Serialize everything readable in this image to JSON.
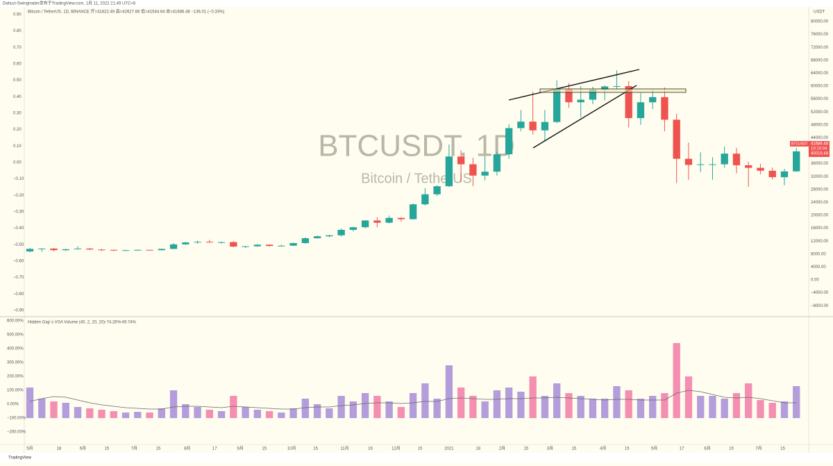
{
  "header": {
    "publisher": "Dahuzi-Swingtrader发布于TradingView.com,  1月 11, 2022 21:49 UTC+8",
    "legend": "Bitcoin / TetherUS, 1D, BINANCE  开=41822.49  高=42627.66  低=41544.64  收=41686.48  −136.01 (−0.33%)",
    "brand": "TradingView"
  },
  "chart_data": [
    {
      "type": "candlestick",
      "title": "BTCUSDT, 1D",
      "subtitle": "Bitcoin / TetherUS",
      "unit": "USDT",
      "x": [
        0,
        7,
        14,
        21,
        28,
        35,
        42,
        49,
        56,
        63,
        70,
        77,
        84,
        91,
        98,
        105,
        112,
        119,
        126,
        133,
        140,
        147,
        154,
        161,
        168,
        175,
        182,
        189,
        196,
        203,
        210,
        217,
        224,
        231,
        238,
        245,
        252,
        259,
        266,
        273,
        280,
        287,
        294,
        301,
        308,
        315,
        322,
        329,
        336,
        343,
        350,
        357,
        364,
        371,
        378,
        385,
        392,
        399,
        406,
        413,
        420,
        427,
        434,
        441,
        448
      ],
      "series": [
        {
          "name": "BTCUSDT",
          "axis": "y2",
          "up_color": "#26a69a",
          "down_color": "#ef5350",
          "open": [
            8800,
            9600,
            9700,
            9200,
            9500,
            9700,
            9400,
            9300,
            9100,
            9200,
            9300,
            9200,
            9600,
            11000,
            11600,
            11800,
            11600,
            11700,
            10300,
            10400,
            10900,
            10500,
            10600,
            11400,
            12900,
            13500,
            13800,
            15500,
            16300,
            18400,
            17700,
            19200,
            18800,
            23400,
            26500,
            29000,
            38200,
            35800,
            32300,
            33500,
            38900,
            47000,
            49000,
            46300,
            48900,
            59000,
            55000,
            55800,
            58900,
            59900,
            60000,
            50100,
            55000,
            56600,
            49600,
            37500,
            35600,
            35800,
            35800,
            39100,
            35500,
            34700,
            33800,
            31800,
            33600
          ],
          "high": [
            9900,
            9800,
            9900,
            9600,
            10400,
            9900,
            9600,
            9400,
            9300,
            9400,
            9300,
            9700,
            11400,
            11800,
            12100,
            12400,
            11800,
            12000,
            10500,
            11100,
            11000,
            10900,
            11500,
            13200,
            13800,
            14000,
            15900,
            16400,
            18500,
            19400,
            19900,
            19400,
            23700,
            28400,
            29300,
            41900,
            40100,
            37800,
            38500,
            39700,
            48200,
            52600,
            58300,
            52600,
            61800,
            61000,
            60000,
            59800,
            60200,
            64900,
            61500,
            57900,
            58900,
            59600,
            51500,
            42500,
            39500,
            38000,
            41300,
            40900,
            36600,
            35900,
            34800,
            34400,
            40900
          ],
          "low": [
            8600,
            8700,
            8800,
            8900,
            9400,
            9300,
            8900,
            8900,
            9000,
            9100,
            9100,
            9100,
            9500,
            10800,
            11200,
            11500,
            11200,
            10100,
            9900,
            10200,
            10300,
            10400,
            10500,
            11200,
            12800,
            13200,
            13400,
            15000,
            16000,
            16300,
            17500,
            18000,
            18700,
            23000,
            26000,
            28800,
            30300,
            29000,
            30800,
            32300,
            37500,
            46000,
            45000,
            43000,
            48500,
            53300,
            50300,
            54400,
            55600,
            59000,
            47200,
            48000,
            52900,
            46000,
            30000,
            31000,
            33400,
            31000,
            34700,
            33000,
            28800,
            32700,
            31100,
            29300,
            33500
          ],
          "close": [
            9600,
            9700,
            9200,
            9500,
            9700,
            9400,
            9300,
            9100,
            9200,
            9300,
            9200,
            9600,
            11000,
            11600,
            11800,
            11600,
            11700,
            10300,
            10400,
            10900,
            10500,
            10600,
            11400,
            12900,
            13500,
            13800,
            15500,
            16300,
            18400,
            17700,
            19200,
            18800,
            23400,
            26500,
            29000,
            38200,
            35800,
            32300,
            33500,
            38900,
            47000,
            49000,
            46300,
            48900,
            59000,
            55000,
            55800,
            58900,
            59900,
            60000,
            50100,
            55000,
            56600,
            49600,
            37500,
            35600,
            35800,
            35800,
            39100,
            35500,
            34700,
            33800,
            31800,
            33600,
            39800
          ]
        }
      ],
      "price_tags": [
        "41686.48",
        "10:10:04",
        "40016.48"
      ],
      "xlim": [
        -3.25,
        454.4
      ],
      "xticks": [
        {
          "value": 0,
          "label": "5月"
        },
        {
          "value": 17,
          "label": "18"
        },
        {
          "value": 31,
          "label": "6月"
        },
        {
          "value": 45,
          "label": "15"
        },
        {
          "value": 61,
          "label": "7月"
        },
        {
          "value": 75,
          "label": "15"
        },
        {
          "value": 92,
          "label": "8月"
        },
        {
          "value": 108,
          "label": "17"
        },
        {
          "value": 123,
          "label": "9月"
        },
        {
          "value": 137,
          "label": "15"
        },
        {
          "value": 153,
          "label": "10月"
        },
        {
          "value": 167,
          "label": "15"
        },
        {
          "value": 184,
          "label": "11月"
        },
        {
          "value": 199,
          "label": "16"
        },
        {
          "value": 214,
          "label": "12月"
        },
        {
          "value": 228,
          "label": "15"
        },
        {
          "value": 245,
          "label": "2021"
        },
        {
          "value": 262,
          "label": "18"
        },
        {
          "value": 276,
          "label": "2月"
        },
        {
          "value": 290,
          "label": "15"
        },
        {
          "value": 304,
          "label": "3月"
        },
        {
          "value": 318,
          "label": "15"
        },
        {
          "value": 335,
          "label": "4月"
        },
        {
          "value": 349,
          "label": "15"
        },
        {
          "value": 365,
          "label": "5月"
        },
        {
          "value": 381,
          "label": "17"
        },
        {
          "value": 396,
          "label": "6月"
        },
        {
          "value": 410,
          "label": "15"
        },
        {
          "value": 426,
          "label": "7月"
        },
        {
          "value": 440,
          "label": "15"
        }
      ],
      "ylim": [
        -0.934,
        0.9465
      ],
      "yticks": [
        {
          "value": 0.9,
          "label": "0.90"
        },
        {
          "value": 0.8,
          "label": "0.80"
        },
        {
          "value": 0.7,
          "label": "0.70"
        },
        {
          "value": 0.6,
          "label": "0.60"
        },
        {
          "value": 0.5,
          "label": "0.50"
        },
        {
          "value": 0.4,
          "label": "0.40"
        },
        {
          "value": 0.3,
          "label": "0.30"
        },
        {
          "value": 0.2,
          "label": "0.20"
        },
        {
          "value": 0.1,
          "label": "0.10"
        },
        {
          "value": 0,
          "label": "0.00"
        },
        {
          "value": -0.1,
          "label": "−0.10"
        },
        {
          "value": -0.2,
          "label": "−0.20"
        },
        {
          "value": -0.3,
          "label": "−0.30"
        },
        {
          "value": -0.4,
          "label": "−0.40"
        },
        {
          "value": -0.5,
          "label": "−0.50"
        },
        {
          "value": -0.6,
          "label": "−0.60"
        },
        {
          "value": -0.7,
          "label": "−0.70"
        },
        {
          "value": -0.8,
          "label": "−0.80"
        },
        {
          "value": -0.9,
          "label": "−0.90"
        }
      ],
      "y2lim": [
        -11180,
        84520
      ],
      "y2ticks": [
        {
          "value": 80000,
          "label": "80000.00"
        },
        {
          "value": 76000,
          "label": "76000.00"
        },
        {
          "value": 72000,
          "label": "72000.00"
        },
        {
          "value": 68000,
          "label": "68000.00"
        },
        {
          "value": 64000,
          "label": "64000.00"
        },
        {
          "value": 60000,
          "label": "60000.00"
        },
        {
          "value": 56000,
          "label": "56000.00"
        },
        {
          "value": 52000,
          "label": "52000.00"
        },
        {
          "value": 48000,
          "label": "48000.00"
        },
        {
          "value": 44000,
          "label": "44000.00"
        },
        {
          "value": 40000,
          "label": "40000.00"
        },
        {
          "value": 36000,
          "label": "36000.00"
        },
        {
          "value": 32000,
          "label": "32000.00"
        },
        {
          "value": 28000,
          "label": "28000.00"
        },
        {
          "value": 24000,
          "label": "24000.00"
        },
        {
          "value": 20000,
          "label": "20000.00"
        },
        {
          "value": 16000,
          "label": "16000.00"
        },
        {
          "value": 12000,
          "label": "12000.00"
        },
        {
          "value": 8000,
          "label": "8000.00"
        },
        {
          "value": 4000,
          "label": "4000.00"
        },
        {
          "value": 0,
          "label": "0.00"
        },
        {
          "value": -4000,
          "label": "−4000.00"
        },
        {
          "value": -8000,
          "label": "−8000.00"
        }
      ]
    },
    {
      "type": "bar",
      "title": "Hidden Gap`s VSA Volume (40, 2, 20, 20)",
      "legend_values": [
        "−74.26%",
        "−49.74%"
      ],
      "series": [
        {
          "name": "VSA Volume",
          "up_color": "#b39ddb",
          "down_color": "#f48fb1",
          "values": [
            120,
            40,
            20,
            10,
            -20,
            -30,
            -40,
            -50,
            -60,
            -55,
            -60,
            -30,
            100,
            0,
            -20,
            -40,
            -50,
            60,
            -20,
            -40,
            -50,
            -60,
            -30,
            40,
            0,
            -30,
            60,
            20,
            80,
            60,
            20,
            -20,
            80,
            150,
            40,
            280,
            120,
            60,
            20,
            100,
            120,
            90,
            200,
            60,
            150,
            80,
            60,
            40,
            40,
            130,
            100,
            40,
            60,
            80,
            440,
            200,
            60,
            60,
            40,
            80,
            150,
            30,
            10,
            20,
            130
          ]
        },
        {
          "name": "MA",
          "type": "line",
          "color": "#666666",
          "values": [
            20,
            40,
            55,
            50,
            30,
            10,
            -5,
            -15,
            -25,
            -30,
            -35,
            -35,
            -20,
            -15,
            -15,
            -20,
            -25,
            -15,
            -20,
            -25,
            -30,
            -35,
            -35,
            -25,
            -20,
            -20,
            -10,
            -5,
            5,
            10,
            10,
            5,
            10,
            20,
            20,
            40,
            45,
            40,
            35,
            35,
            40,
            40,
            45,
            45,
            50,
            45,
            40,
            35,
            30,
            35,
            35,
            30,
            30,
            30,
            80,
            100,
            90,
            70,
            50,
            45,
            50,
            40,
            25,
            10,
            10
          ]
        }
      ],
      "ylim": [
        -290,
        625
      ],
      "yticks": [
        {
          "value": 600,
          "label": "600.00%"
        },
        {
          "value": 500,
          "label": "500.00%"
        },
        {
          "value": 400,
          "label": "400.00%"
        },
        {
          "value": 300,
          "label": "300.00%"
        },
        {
          "value": 200,
          "label": "200.00%"
        },
        {
          "value": 100,
          "label": "100.00%"
        },
        {
          "value": 0,
          "label": "0.00%"
        },
        {
          "value": -100,
          "label": "−100.00%"
        },
        {
          "value": -200,
          "label": "−200.00%"
        }
      ]
    }
  ]
}
